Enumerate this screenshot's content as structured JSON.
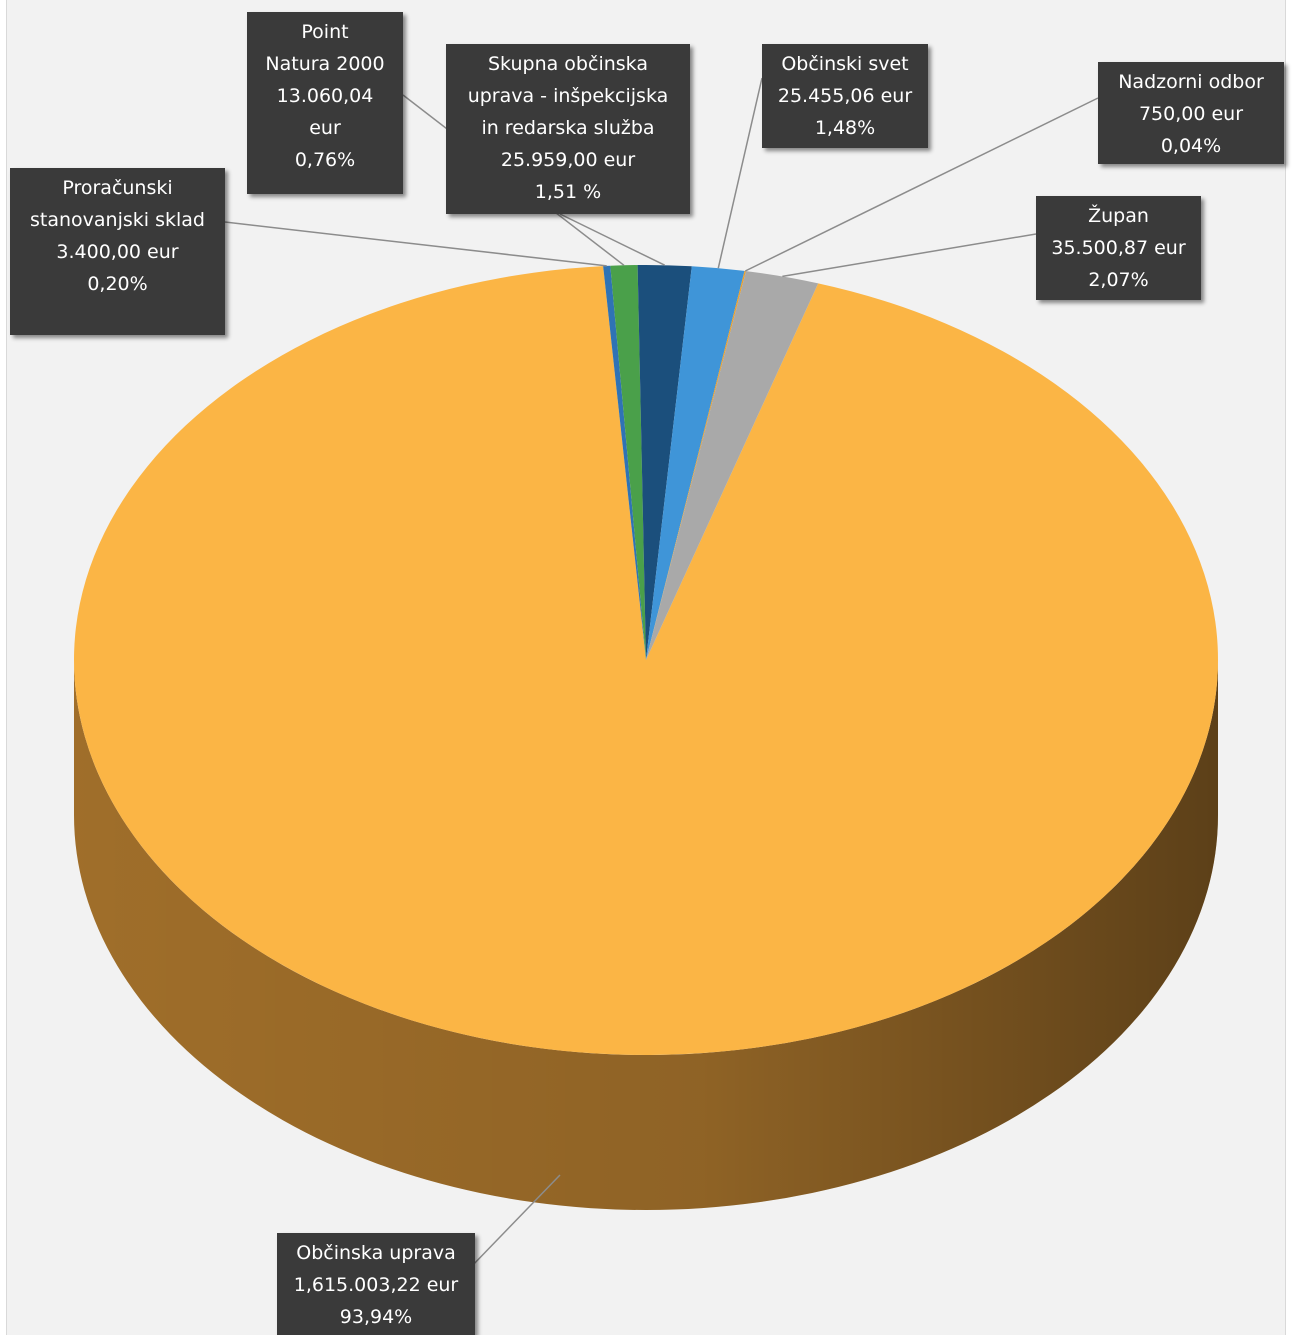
{
  "chart_data": {
    "type": "pie",
    "title": "",
    "slices": [
      {
        "label": "Občinska uprava",
        "value_text": "1,615.003,22 eur",
        "percent_text": "93,94%",
        "percent": 93.94,
        "color": "#fbb545",
        "side_color": "#a8742c"
      },
      {
        "label": "Proračunski stanovanjski sklad",
        "value_text": "3.400,00 eur",
        "percent_text": "0,20%",
        "percent": 0.2,
        "color": "#2f73b5",
        "side_color": "#1f4f7d"
      },
      {
        "label": "Point Natura 2000",
        "value_text": "13.060,04 eur",
        "percent_text": "0,76%",
        "percent": 0.76,
        "color": "#4aa04a",
        "side_color": "#2f6b2f"
      },
      {
        "label": "Skupna občinska uprava - inšpekcijska in redarska služba",
        "value_text": "25.959,00 eur",
        "percent_text": "1,51 %",
        "percent": 1.51,
        "color": "#1b4f7c",
        "side_color": "#113352"
      },
      {
        "label": "Občinski svet",
        "value_text": "25.455,06 eur",
        "percent_text": "1,48%",
        "percent": 1.48,
        "color": "#3f95d8",
        "side_color": "#2a6597"
      },
      {
        "label": "Nadzorni odbor",
        "value_text": "750,00 eur",
        "percent_text": "0,04%",
        "percent": 0.04,
        "color": "#e8a030",
        "side_color": "#9c6a1f"
      },
      {
        "label": "Župan",
        "value_text": "35.500,87 eur",
        "percent_text": "2,07%",
        "percent": 2.07,
        "color": "#a9a9a9",
        "side_color": "#707070"
      }
    ]
  },
  "labels": {
    "upr": {
      "l1": "Občinska uprava",
      "l2": "1,615.003,22 eur",
      "l3": "93,94%"
    },
    "pss": {
      "l1": "Proračunski",
      "l2": "stanovanjski sklad",
      "l3": "3.400,00 eur",
      "l4": "0,20%"
    },
    "pn": {
      "l1": "Point",
      "l2": "Natura 2000",
      "l3": "13.060,04",
      "l4": "eur",
      "l5": "0,76%"
    },
    "sou": {
      "l1": "Skupna občinska",
      "l2": "uprava - inšpekcijska",
      "l3": "in redarska služba",
      "l4": "25.959,00 eur",
      "l5": "1,51 %"
    },
    "os": {
      "l1": "Občinski svet",
      "l2": "25.455,06 eur",
      "l3": "1,48%"
    },
    "no": {
      "l1": "Nadzorni odbor",
      "l2": "750,00 eur",
      "l3": "0,04%"
    },
    "zup": {
      "l1": "Župan",
      "l2": "35.500,87 eur",
      "l3": "2,07%"
    }
  }
}
